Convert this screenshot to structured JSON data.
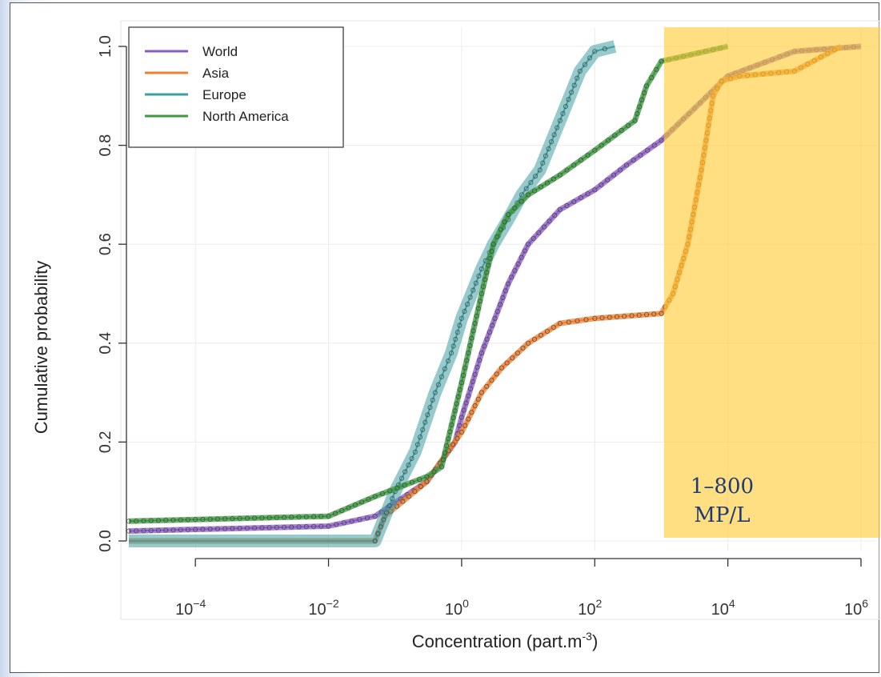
{
  "chart_data": {
    "type": "line",
    "title": "",
    "xlabel_main": "Concentration (part.m",
    "xlabel_sup": "-3",
    "xlabel_end": ")",
    "ylabel": "Cumulative probability",
    "x_scale": "log10",
    "xlim": [
      1e-05,
      1000000.0
    ],
    "ylim": [
      0,
      1
    ],
    "x_ticks": [
      {
        "value": 0.0001,
        "base": "10",
        "exp": "−4"
      },
      {
        "value": 0.01,
        "base": "10",
        "exp": "−2"
      },
      {
        "value": 1,
        "base": "10",
        "exp": "0"
      },
      {
        "value": 100,
        "base": "10",
        "exp": "2"
      },
      {
        "value": 10000,
        "base": "10",
        "exp": "4"
      },
      {
        "value": 1000000,
        "base": "10",
        "exp": "6"
      }
    ],
    "y_ticks": [
      {
        "value": 0,
        "label": "0.0"
      },
      {
        "value": 0.2,
        "label": "0.2"
      },
      {
        "value": 0.4,
        "label": "0.4"
      },
      {
        "value": 0.6,
        "label": "0.6"
      },
      {
        "value": 0.8,
        "label": "0.8"
      },
      {
        "value": 1.0,
        "label": "1.0"
      }
    ],
    "grid": true,
    "legend_position": "top-left",
    "series": [
      {
        "name": "World",
        "color": "#8a5cc4",
        "x": [
          1e-05,
          0.01,
          0.05,
          0.3,
          0.8,
          1,
          2,
          5,
          10,
          30,
          100,
          300,
          1000,
          10000.0,
          100000.0,
          1000000.0
        ],
        "y": [
          0.02,
          0.03,
          0.05,
          0.12,
          0.2,
          0.25,
          0.38,
          0.52,
          0.6,
          0.67,
          0.71,
          0.76,
          0.81,
          0.94,
          0.99,
          1.0
        ]
      },
      {
        "name": "Asia",
        "color": "#f08030",
        "x": [
          1e-05,
          0.05,
          0.07,
          0.3,
          1,
          2,
          4,
          10,
          30,
          100,
          1000,
          1500,
          2500,
          4000,
          6000,
          8000,
          15000,
          100000.0,
          500000.0
        ],
        "y": [
          0.0,
          0.0,
          0.05,
          0.12,
          0.22,
          0.3,
          0.35,
          0.4,
          0.44,
          0.45,
          0.46,
          0.5,
          0.6,
          0.75,
          0.9,
          0.93,
          0.94,
          0.95,
          1.0
        ]
      },
      {
        "name": "Europe",
        "color": "#3f9ea2",
        "x": [
          1e-05,
          0.05,
          0.1,
          0.2,
          0.4,
          0.7,
          1,
          2,
          3,
          5,
          8,
          15,
          30,
          60,
          100,
          200
        ],
        "y": [
          0.0,
          0.0,
          0.1,
          0.18,
          0.3,
          0.38,
          0.45,
          0.55,
          0.6,
          0.65,
          0.7,
          0.75,
          0.85,
          0.95,
          0.99,
          1.0
        ]
      },
      {
        "name": "North America",
        "color": "#3c9a40",
        "x": [
          1e-05,
          0.01,
          0.05,
          0.3,
          0.5,
          1,
          2,
          3,
          5,
          10,
          30,
          100,
          400,
          600,
          1000,
          10000.0
        ],
        "y": [
          0.04,
          0.05,
          0.09,
          0.13,
          0.15,
          0.32,
          0.5,
          0.6,
          0.66,
          0.7,
          0.74,
          0.79,
          0.85,
          0.92,
          0.97,
          1.0
        ]
      }
    ],
    "highlight": {
      "x_from": 1100,
      "x_to": 1000000.0,
      "color": "#ffcc33",
      "line1": "1–800",
      "line2": "MP/L"
    }
  }
}
